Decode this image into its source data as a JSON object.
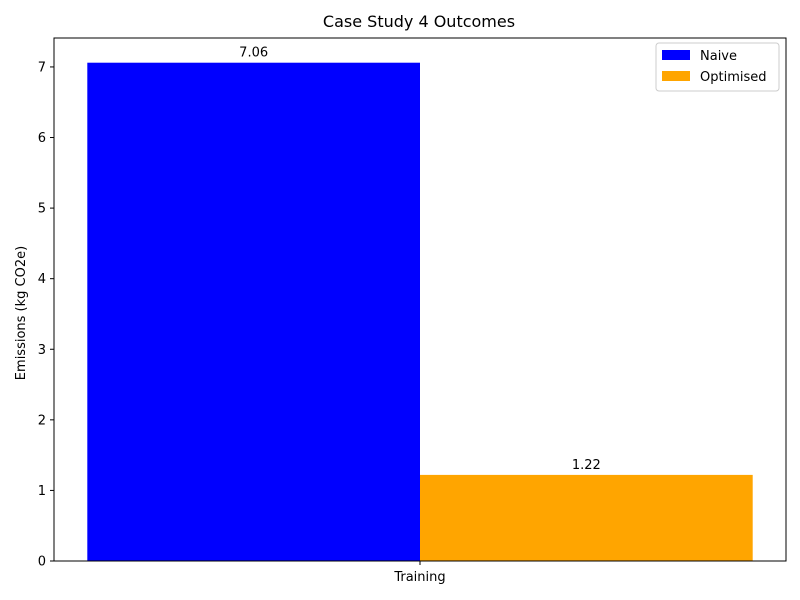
{
  "chart_data": {
    "type": "bar",
    "title": "Case Study 4 Outcomes",
    "xlabel": "",
    "ylabel": "Emissions (kg CO2e)",
    "categories": [
      "Training"
    ],
    "ylim": [
      0,
      7.41
    ],
    "yticks": [
      0,
      1,
      2,
      3,
      4,
      5,
      6,
      7
    ],
    "grid": false,
    "legend_position": "top-right",
    "series": [
      {
        "name": "Naive",
        "values": [
          7.06
        ],
        "labels": [
          "7.06"
        ],
        "color": "#0000ff"
      },
      {
        "name": "Optimised",
        "values": [
          1.22
        ],
        "labels": [
          "1.22"
        ],
        "color": "#ffa500"
      }
    ]
  }
}
